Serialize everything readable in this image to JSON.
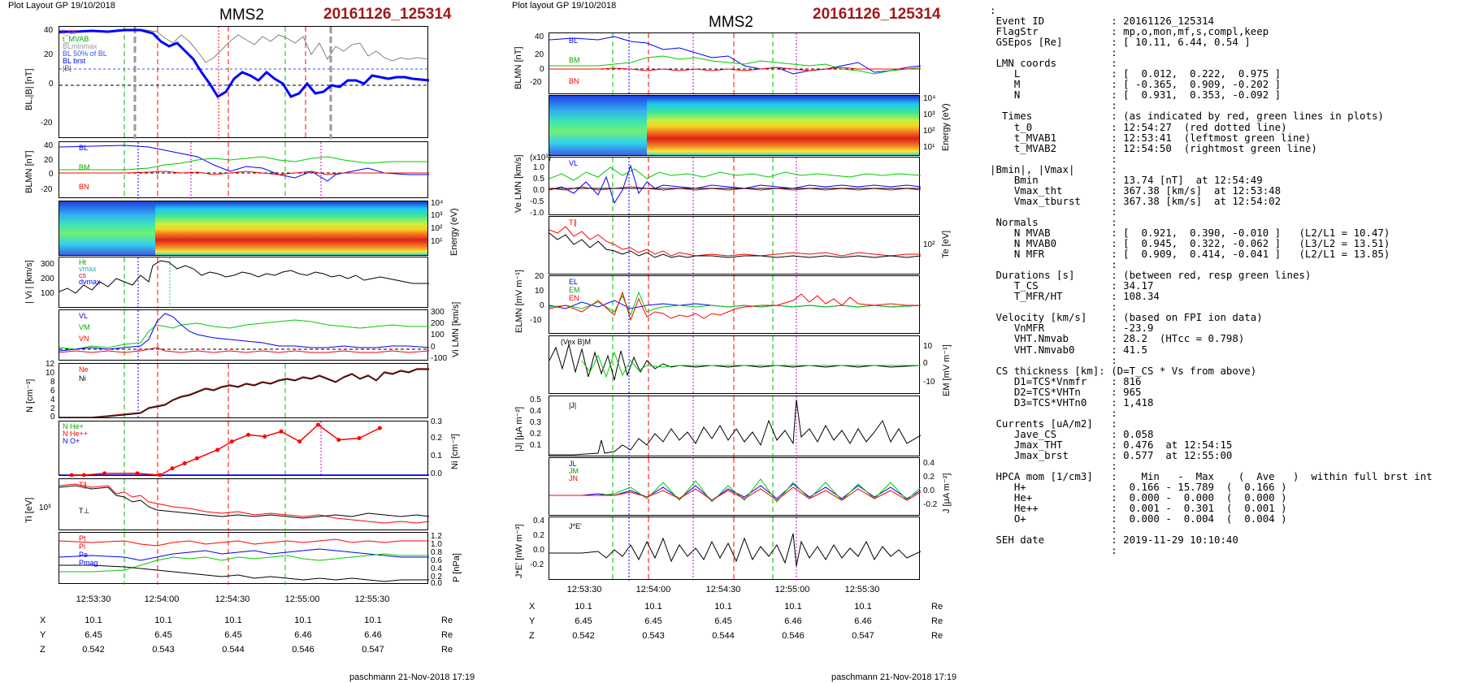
{
  "header": {
    "left_plot_label": "Plot Layout GP 19/10/2018",
    "right_plot_label": "Plot layout GP 19/10/2018",
    "spacecraft": "MMS2",
    "event_id": "20161126_125314",
    "footer": "paschmann 21-Nov-2018 17:19"
  },
  "colors": {
    "event_id": "#a01818",
    "blue": "#0000ff",
    "green": "#00cc00",
    "red": "#ff0000",
    "magenta": "#d000d0",
    "gray": "#909090"
  },
  "time_axis": {
    "ticks": [
      "12:53:30",
      "12:54:00",
      "12:54:30",
      "12:55:00",
      "12:55:30"
    ],
    "pos_rows": [
      {
        "label": "X",
        "values": [
          "10.1",
          "10.1",
          "10.1",
          "10.1",
          "10.1"
        ],
        "unit": "Re"
      },
      {
        "label": "Y",
        "values": [
          "6.45",
          "6.45",
          "6.45",
          "6.46",
          "6.46"
        ],
        "unit": "Re"
      },
      {
        "label": "Z",
        "values": [
          "0.542",
          "0.543",
          "0.544",
          "0.546",
          "0.547"
        ],
        "unit": "Re"
      }
    ]
  },
  "chart_data": [
    {
      "type": "line",
      "title": "MMS2 left column",
      "panels": [
        {
          "id": "BL",
          "ylabel": "BL,|B| [nT]",
          "ticks": [
            "40",
            "20",
            "0",
            "-20"
          ],
          "ylim": [
            -32,
            44
          ],
          "legend": [
            "t_cs",
            "t_MVAB",
            "BLminmax",
            "BL 50% of BL",
            "BL brst",
            "|B|"
          ]
        },
        {
          "id": "BLMN",
          "ylabel": "BLMN [nT]",
          "ticks": [
            "40",
            "20",
            "0",
            "-20"
          ],
          "ylim": [
            -25,
            42
          ],
          "legend": [
            "BL",
            "BM",
            "BN"
          ]
        },
        {
          "id": "spec",
          "ylabel": "Energy (eV)",
          "ticks": [
            "10⁴",
            "10³",
            "10²",
            "10¹"
          ]
        },
        {
          "id": "Vi",
          "ylabel": "| Vi | [km/s]",
          "ticks": [
            "300",
            "200",
            "100"
          ],
          "ylim": [
            0,
            360
          ],
          "legend": [
            "Ht",
            "vmax",
            "cs",
            "dvmax"
          ]
        },
        {
          "id": "ViLMN",
          "ylabel": "Vi LMN [km/s]",
          "ticks": [
            "300",
            "200",
            "100",
            "0",
            "-100"
          ],
          "ylim": [
            -130,
            320
          ],
          "legend": [
            "VL",
            "VM",
            "VN"
          ]
        },
        {
          "id": "N",
          "ylabel": "N [cm⁻³]",
          "ticks": [
            "12",
            "10",
            "8",
            "6",
            "4",
            "2",
            "0"
          ],
          "ylim": [
            0,
            12.5
          ],
          "legend": [
            "Ne",
            "Ni"
          ]
        },
        {
          "id": "Ni_hpca",
          "ylabel": "Ni [cm⁻³]",
          "ticks": [
            "0.3",
            "0.2",
            "0.1",
            "0.0"
          ],
          "ylim": [
            0,
            0.3
          ],
          "legend": [
            "N He+",
            "N He++",
            "N O+"
          ],
          "series": [
            {
              "name": "N He++",
              "x": [
                6,
                12,
                22,
                38,
                49,
                55,
                61,
                67,
                77,
                84,
                92,
                100,
                108,
                117,
                126,
                136,
                146,
                156
              ],
              "values": [
                0.0,
                0.0,
                0.01,
                0.01,
                0.0,
                0.04,
                0.07,
                0.1,
                0.15,
                0.2,
                0.24,
                0.23,
                0.26,
                0.2,
                0.3,
                0.21,
                0.22,
                0.28
              ]
            }
          ]
        },
        {
          "id": "Ti",
          "ylabel": "Ti [eV]",
          "ticks": [
            "10³"
          ],
          "legend": [
            "T∥",
            "T⊥"
          ]
        },
        {
          "id": "P",
          "ylabel": "P [nPa]",
          "ticks": [
            "1.2",
            "1.0",
            "0.8",
            "0.6",
            "0.4",
            "0.2",
            "0.0"
          ],
          "ylim": [
            0,
            1.2
          ],
          "legend": [
            "Pt",
            "Pi",
            "Pe",
            "Pmag"
          ]
        }
      ]
    },
    {
      "type": "line",
      "title": "MMS2 right column",
      "panels": [
        {
          "id": "BLMN",
          "ylabel": "BLMN [nT]",
          "ticks": [
            "40",
            "20",
            "0",
            "-20"
          ],
          "ylim": [
            -30,
            42
          ],
          "legend": [
            "BL",
            "BM",
            "BN"
          ]
        },
        {
          "id": "spec",
          "ylabel": "Energy (eV)",
          "ticks": [
            "10⁴",
            "10³",
            "10²",
            "10¹"
          ]
        },
        {
          "id": "Ve",
          "ylabel": "Ve LMN [km/s]",
          "ticks": [
            "1.0",
            "0.5",
            "0.0",
            "-0.5",
            "-1.0"
          ],
          "exponent": "(x10³)",
          "ylim": [
            -1.1,
            1.2
          ],
          "legend": [
            "VL"
          ]
        },
        {
          "id": "Te",
          "ylabel": "Te [eV]",
          "ticks": [
            "10²"
          ],
          "legend": [
            "T∥"
          ]
        },
        {
          "id": "E",
          "ylabel": "ELMN [mV m⁻¹]",
          "ticks": [
            "20",
            "10",
            "0",
            "-10"
          ],
          "ylim": [
            -17,
            22
          ],
          "legend": [
            "EL",
            "EM",
            "EN"
          ]
        },
        {
          "id": "EM",
          "ylabel": "EM [mV m⁻¹]",
          "ticks": [
            "10",
            "0",
            "-10"
          ],
          "ylim": [
            -16,
            16
          ],
          "legend": [
            "(Vex B)M"
          ]
        },
        {
          "id": "J",
          "ylabel": "|J| [μA m⁻²]",
          "ticks": [
            "0.5",
            "0.4",
            "0.3",
            "0.2",
            "0.1"
          ],
          "ylim": [
            0,
            0.55
          ],
          "legend": [
            "|J|"
          ]
        },
        {
          "id": "JLMN",
          "ylabel": "J [μA m⁻²]",
          "ticks": [
            "0.4",
            "0.2",
            "0.0",
            "-0.2"
          ],
          "ylim": [
            -0.3,
            0.5
          ],
          "legend": [
            "JL",
            "JM",
            "JN"
          ]
        },
        {
          "id": "JE",
          "ylabel": "J*E' [nW m⁻³]",
          "ticks": [
            "0.4",
            "0.2",
            "0.0",
            "-0.2"
          ],
          "ylim": [
            -0.35,
            0.5
          ],
          "legend": [
            "J*E'"
          ]
        }
      ]
    }
  ],
  "info": {
    "lines": [
      ":",
      " Event ID           : 20161126_125314",
      " FlagStr            : mp,o,mon,mf,s,compl,keep",
      " GSEpos [Re]        : [ 10.11, 6.44, 0.54 ]",
      "                    :",
      " LMN coords         :",
      "    L               : [  0.012,  0.222,  0.975 ]",
      "    M               : [ -0.365,  0.909, -0.202 ]",
      "    N               : [  0.931,  0.353, -0.092 ]",
      "                    :",
      "  Times             : (as indicated by red, green lines in plots)",
      "    t_0             : 12:54:27  (red dotted line)",
      "    t_MVAB1         : 12:53:41  (leftmost green line)",
      "    t_MVAB2         : 12:54:50  (rightmost green line)",
      "                    :",
      "|Bmin|, |Vmax|      :",
      "    Bmin            : 13.74 [nT]  at 12:54:49",
      "    Vmax_tht        : 367.38 [km/s]  at 12:53:48",
      "    Vmax_tburst     : 367.38 [km/s]  at 12:54:02",
      "                    :",
      " Normals            :",
      "    N MVAB          : [  0.921,  0.390, -0.010 ]   (L2/L1 = 10.47)",
      "    N MVAB0         : [  0.945,  0.322, -0.062 ]   (L3/L2 = 13.51)",
      "    N MFR           : [  0.909,  0.414, -0.041 ]   (L2/L1 = 13.85)",
      "                    :",
      " Durations [s]      : (between red, resp green lines)",
      "    T_CS            : 34.17",
      "    T_MFR/HT        : 108.34",
      "                    :",
      " Velocity [km/s]    : (based on FPI ion data)",
      "    VnMFR           : -23.9",
      "    VHT.Nmvab       : 28.2  (HTcc = 0.798)",
      "    VHT.Nmvab0      : 41.5",
      "                    :",
      " CS thickness [km]: (D=T_CS * Vs from above)",
      "    D1=TCS*Vnmfr    : 816",
      "    D2=TCS*VHTn     : 965",
      "    D3=TCS*VHTn0    : 1,418",
      "                    :",
      " Currents [uA/m2]   :",
      "    Jave_CS         : 0.058",
      "    Jmax_THT        : 0.476  at 12:54:15",
      "    Jmax_brst       : 0.577  at 12:55:00",
      "                    :",
      " HPCA mom [1/cm3]   :    Min   -  Max    (  Ave   )  within full brst int",
      "    H+              :  0.166 - 15.789  (  0.166 )",
      "    He+             :  0.000 -  0.000  (  0.000 )",
      "    He++            :  0.001 -  0.301  (  0.001 )",
      "    O+              :  0.000 -  0.004  (  0.004 )",
      "                    :",
      " SEH date           : 2019-11-29 10:10:40",
      "                    :"
    ]
  }
}
